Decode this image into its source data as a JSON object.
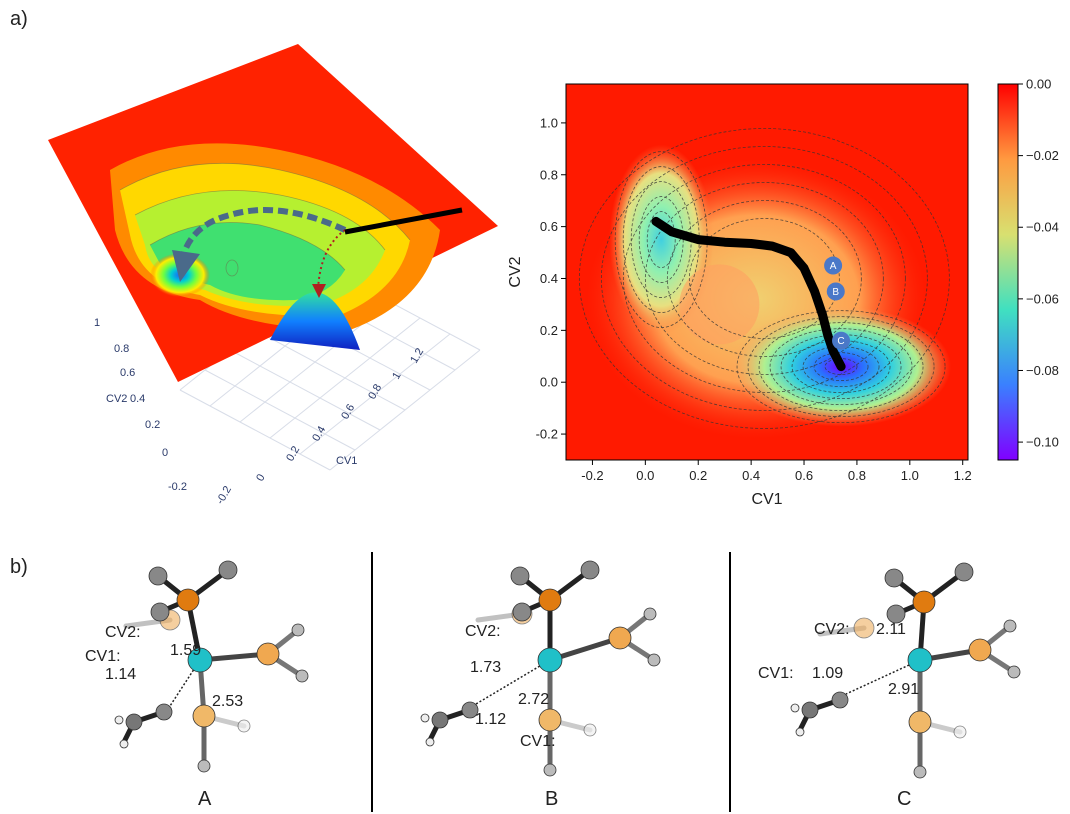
{
  "panel_labels": {
    "a": "a)",
    "b": "b)"
  },
  "colors": {
    "max": "#ff1a00",
    "path": "#000000",
    "marker": "#4a78c8"
  },
  "surface3d": {
    "axis_titles": {
      "x": "CV1",
      "y": "CV2"
    },
    "cv1_ticks": [
      "-0.2",
      "0",
      "0.2",
      "0.4",
      "0.6",
      "0.8",
      "1",
      "1.2"
    ],
    "cv2_ticks": [
      "1",
      "0.8",
      "0.6",
      "0.4",
      "0.2",
      "0",
      "-0.2"
    ]
  },
  "chart_data": {
    "type": "heatmap",
    "title": "",
    "xlabel": "CV1",
    "ylabel": "CV2",
    "xlim": [
      -0.3,
      1.22
    ],
    "ylim": [
      -0.3,
      1.15
    ],
    "x_ticks": [
      "-0.2",
      "0.0",
      "0.2",
      "0.4",
      "0.6",
      "0.8",
      "1.0",
      "1.2"
    ],
    "y_ticks": [
      "-0.2",
      "0.0",
      "0.2",
      "0.4",
      "0.6",
      "0.8",
      "1.0"
    ],
    "colorbar": {
      "min": -0.105,
      "max": 0.0,
      "ticks": [
        "0.00",
        "−0.02",
        "−0.04",
        "−0.06",
        "−0.08",
        "−0.10"
      ],
      "colormap": "rainbow"
    },
    "minima": [
      {
        "x": 0.06,
        "y": 0.55,
        "depth": 0.065
      },
      {
        "x": 0.74,
        "y": 0.06,
        "depth": 0.105
      },
      {
        "x": 0.28,
        "y": 0.3,
        "depth": 0.02
      }
    ],
    "path": [
      [
        0.04,
        0.62
      ],
      [
        0.1,
        0.58
      ],
      [
        0.2,
        0.55
      ],
      [
        0.3,
        0.54
      ],
      [
        0.4,
        0.535
      ],
      [
        0.48,
        0.525
      ],
      [
        0.55,
        0.5
      ],
      [
        0.6,
        0.44
      ],
      [
        0.64,
        0.35
      ],
      [
        0.67,
        0.26
      ],
      [
        0.69,
        0.18
      ],
      [
        0.71,
        0.12
      ],
      [
        0.74,
        0.06
      ]
    ],
    "markers": [
      {
        "label": "A",
        "x": 0.71,
        "y": 0.45
      },
      {
        "label": "B",
        "x": 0.72,
        "y": 0.35
      },
      {
        "label": "C",
        "x": 0.74,
        "y": 0.16
      }
    ]
  },
  "structures": [
    {
      "label": "A",
      "cv2_label": "CV2:",
      "cv2_value": "1.59",
      "cv1_label": "CV1:",
      "cv1_value": "1.14",
      "extra_value": "2.53"
    },
    {
      "label": "B",
      "cv2_label": "CV2:",
      "cv2_value": "1.73",
      "cv1_label": "CV1:",
      "cv1_value": "1.12",
      "extra_value": "2.72"
    },
    {
      "label": "C",
      "cv2_label": "CV2: ",
      "cv2_value": "2.11",
      "cv1_label": "CV1: ",
      "cv1_value": "1.09",
      "extra_value": "2.91"
    }
  ]
}
